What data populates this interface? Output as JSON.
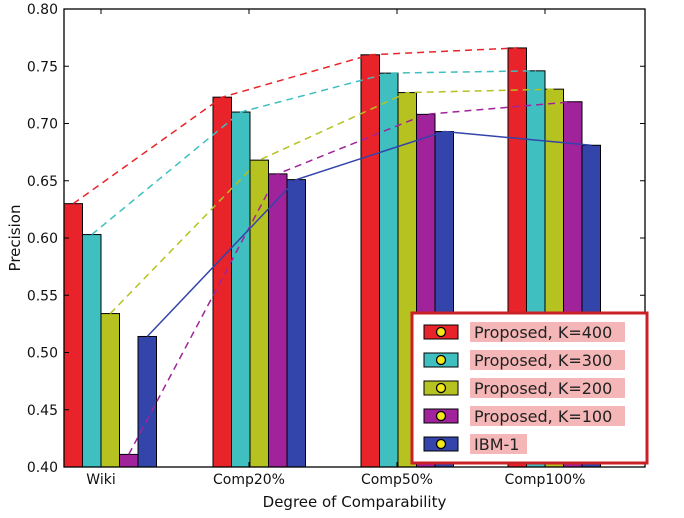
{
  "chart_data": {
    "type": "bar",
    "xlabel": "Degree of Comparability",
    "ylabel": "Precision",
    "ylim": [
      0.4,
      0.8
    ],
    "yticks": [
      "0.40",
      "0.45",
      "0.50",
      "0.55",
      "0.60",
      "0.65",
      "0.70",
      "0.75",
      "0.80"
    ],
    "categories": [
      "Wiki",
      "Comp20%",
      "Comp50%",
      "Comp100%"
    ],
    "series": [
      {
        "name": "Proposed, K=400",
        "color": "#e8242a",
        "line": "dashed",
        "values": [
          0.63,
          0.723,
          0.76,
          0.766
        ]
      },
      {
        "name": "Proposed, K=300",
        "color": "#3fbfbf",
        "line": "dashed",
        "values": [
          0.603,
          0.71,
          0.744,
          0.746
        ]
      },
      {
        "name": "Proposed, K=200",
        "color": "#b5c21f",
        "line": "dashed",
        "values": [
          0.534,
          0.668,
          0.727,
          0.73
        ]
      },
      {
        "name": "Proposed, K=100",
        "color": "#a0239b",
        "line": "dashed",
        "values": [
          0.411,
          0.656,
          0.708,
          0.719
        ]
      },
      {
        "name": "IBM-1",
        "color": "#3344aa",
        "line": "solid",
        "values": [
          0.514,
          0.651,
          0.693,
          0.681
        ]
      }
    ],
    "grid": false,
    "legend_position": "bottom-right"
  }
}
